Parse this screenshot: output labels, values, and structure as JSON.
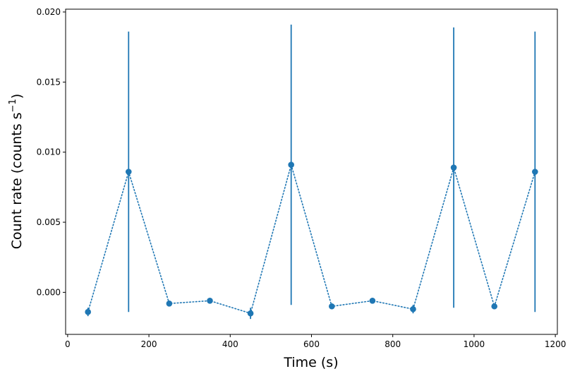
{
  "chart_data": {
    "type": "scatter",
    "xlabel": "Time (s)",
    "ylabel_main": "Count rate (counts s",
    "ylabel_sup": "−1",
    "ylabel_close": ")",
    "xlim": [
      -5,
      1205
    ],
    "ylim": [
      -0.003,
      0.0202
    ],
    "x_ticks": [
      0,
      200,
      400,
      600,
      800,
      1000,
      1200
    ],
    "x_tick_labels": [
      "0",
      "200",
      "400",
      "600",
      "800",
      "1000",
      "1200"
    ],
    "y_ticks": [
      0.0,
      0.005,
      0.01,
      0.015,
      0.02
    ],
    "y_tick_labels": [
      "0.000",
      "0.005",
      "0.010",
      "0.015",
      "0.020"
    ],
    "grid": false,
    "line_style": "dotted",
    "color": "#1f77b4",
    "points": [
      {
        "x": 50,
        "y": -0.0014,
        "err_low": 0.0003,
        "err_high": 0.0003
      },
      {
        "x": 150,
        "y": 0.0086,
        "err_low": 0.01,
        "err_high": 0.01
      },
      {
        "x": 250,
        "y": -0.0008,
        "err_low": 0.0002,
        "err_high": 0.0002
      },
      {
        "x": 350,
        "y": -0.0006,
        "err_low": 0.0002,
        "err_high": 0.0002
      },
      {
        "x": 450,
        "y": -0.0015,
        "err_low": 0.0004,
        "err_high": 0.0004
      },
      {
        "x": 550,
        "y": 0.0091,
        "err_low": 0.01,
        "err_high": 0.01
      },
      {
        "x": 650,
        "y": -0.001,
        "err_low": 0.0002,
        "err_high": 0.0002
      },
      {
        "x": 750,
        "y": -0.0006,
        "err_low": 0.0002,
        "err_high": 0.0002
      },
      {
        "x": 850,
        "y": -0.0012,
        "err_low": 0.0003,
        "err_high": 0.0003
      },
      {
        "x": 950,
        "y": 0.0089,
        "err_low": 0.01,
        "err_high": 0.01
      },
      {
        "x": 1050,
        "y": -0.001,
        "err_low": 0.0002,
        "err_high": 0.0002
      },
      {
        "x": 1150,
        "y": 0.0086,
        "err_low": 0.01,
        "err_high": 0.01
      }
    ]
  }
}
